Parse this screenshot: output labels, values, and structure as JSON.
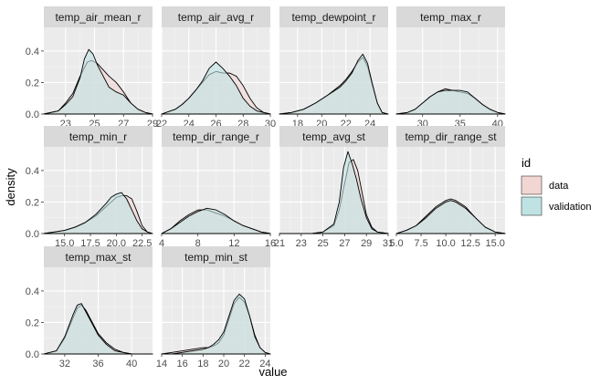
{
  "chart_data": {
    "type": "area",
    "xlabel": "value",
    "ylabel": "density",
    "legend": {
      "title": "id",
      "position": "right",
      "entries": [
        {
          "label": "data",
          "fill": "#f1d6d3"
        },
        {
          "label": "validation",
          "fill": "#bfe3e3"
        }
      ]
    },
    "grid": true,
    "facets": [
      {
        "title": "temp_air_mean_r",
        "xlim": [
          21.5,
          29
        ],
        "ylim": [
          0,
          0.55
        ],
        "xticks": [
          23,
          25,
          27,
          29
        ],
        "yticks": [
          0.0,
          0.2,
          0.4
        ],
        "series": [
          {
            "name": "data",
            "x": [
              21.5,
              22.5,
              23.0,
              23.5,
              24.0,
              24.5,
              24.8,
              25.2,
              25.5,
              26.0,
              26.5,
              27.0,
              27.5,
              28.0,
              28.5,
              29.0
            ],
            "y": [
              0.0,
              0.02,
              0.07,
              0.13,
              0.24,
              0.33,
              0.34,
              0.32,
              0.29,
              0.24,
              0.2,
              0.14,
              0.07,
              0.03,
              0.01,
              0.0
            ]
          },
          {
            "name": "validation",
            "x": [
              21.5,
              22.5,
              23.0,
              23.5,
              24.0,
              24.3,
              24.6,
              24.9,
              25.2,
              25.6,
              26.0,
              26.5,
              27.0,
              27.5,
              28.0,
              28.5,
              29.0
            ],
            "y": [
              0.0,
              0.02,
              0.06,
              0.11,
              0.23,
              0.35,
              0.41,
              0.38,
              0.31,
              0.24,
              0.17,
              0.14,
              0.12,
              0.07,
              0.03,
              0.01,
              0.0
            ]
          }
        ]
      },
      {
        "title": "temp_air_avg_r",
        "xlim": [
          22,
          30
        ],
        "ylim": [
          0,
          0.55
        ],
        "xticks": [
          22,
          24,
          26,
          28,
          30
        ],
        "yticks": [
          0.0,
          0.2,
          0.4
        ],
        "series": [
          {
            "name": "data",
            "x": [
              22.0,
              23.0,
              23.5,
              24.0,
              24.5,
              25.0,
              25.5,
              26.0,
              26.5,
              27.0,
              27.5,
              28.0,
              28.5,
              29.0,
              29.5,
              30.0
            ],
            "y": [
              0.0,
              0.03,
              0.06,
              0.1,
              0.15,
              0.2,
              0.25,
              0.27,
              0.26,
              0.26,
              0.24,
              0.18,
              0.1,
              0.04,
              0.01,
              0.0
            ]
          },
          {
            "name": "validation",
            "x": [
              22.0,
              23.0,
              23.5,
              24.0,
              24.5,
              25.0,
              25.5,
              26.0,
              26.5,
              27.0,
              27.5,
              28.0,
              28.5,
              29.0,
              29.5,
              30.0
            ],
            "y": [
              0.0,
              0.03,
              0.06,
              0.1,
              0.15,
              0.21,
              0.29,
              0.33,
              0.29,
              0.24,
              0.18,
              0.1,
              0.05,
              0.02,
              0.01,
              0.0
            ]
          }
        ]
      },
      {
        "title": "temp_dewpoint_r",
        "xlim": [
          16.5,
          25.5
        ],
        "ylim": [
          0,
          0.55
        ],
        "xticks": [
          18,
          20,
          22,
          24
        ],
        "yticks": [
          0.0,
          0.2,
          0.4
        ],
        "series": [
          {
            "name": "data",
            "x": [
              16.5,
              17.5,
              18.5,
              19.5,
              20.5,
              21.5,
              22.0,
              22.5,
              23.0,
              23.4,
              23.8,
              24.2,
              24.6,
              25.0,
              25.5
            ],
            "y": [
              0.0,
              0.01,
              0.03,
              0.07,
              0.12,
              0.18,
              0.22,
              0.27,
              0.33,
              0.36,
              0.3,
              0.18,
              0.07,
              0.01,
              0.0
            ]
          },
          {
            "name": "validation",
            "x": [
              16.5,
              17.5,
              18.5,
              19.5,
              20.5,
              21.5,
              22.0,
              22.5,
              23.0,
              23.4,
              23.8,
              24.2,
              24.6,
              25.0,
              25.5
            ],
            "y": [
              0.0,
              0.01,
              0.03,
              0.07,
              0.12,
              0.17,
              0.21,
              0.26,
              0.34,
              0.38,
              0.32,
              0.19,
              0.07,
              0.01,
              0.0
            ]
          }
        ]
      },
      {
        "title": "temp_max_r",
        "xlim": [
          26.5,
          41
        ],
        "ylim": [
          0,
          0.55
        ],
        "xticks": [
          30,
          35,
          40
        ],
        "yticks": [
          0.0,
          0.2,
          0.4
        ],
        "series": [
          {
            "name": "data",
            "x": [
              26.5,
              28.0,
              29.0,
              30.0,
              31.0,
              32.0,
              33.0,
              34.0,
              35.0,
              36.0,
              37.0,
              38.0,
              39.0,
              40.0,
              41.0
            ],
            "y": [
              0.0,
              0.01,
              0.03,
              0.07,
              0.11,
              0.14,
              0.16,
              0.15,
              0.14,
              0.13,
              0.1,
              0.06,
              0.03,
              0.01,
              0.0
            ]
          },
          {
            "name": "validation",
            "x": [
              26.5,
              28.0,
              29.0,
              30.0,
              31.0,
              32.0,
              33.0,
              34.0,
              35.0,
              36.0,
              37.0,
              38.0,
              39.0,
              40.0,
              41.0
            ],
            "y": [
              0.0,
              0.01,
              0.03,
              0.07,
              0.11,
              0.14,
              0.15,
              0.15,
              0.15,
              0.14,
              0.1,
              0.06,
              0.03,
              0.01,
              0.0
            ]
          }
        ]
      },
      {
        "title": "temp_min_r",
        "xlim": [
          13,
          23.5
        ],
        "ylim": [
          0,
          0.55
        ],
        "xticks": [
          15.0,
          17.5,
          20.0,
          22.5
        ],
        "yticks": [
          0.0,
          0.2,
          0.4
        ],
        "xticklabels": [
          "15.0",
          "17.5",
          "20.0",
          "22.5"
        ],
        "series": [
          {
            "name": "data",
            "x": [
              13.0,
              14.0,
              15.0,
              16.0,
              17.0,
              18.0,
              19.0,
              19.5,
              20.0,
              20.5,
              21.0,
              21.5,
              22.0,
              22.5,
              23.0,
              23.5
            ],
            "y": [
              0.0,
              0.01,
              0.02,
              0.04,
              0.07,
              0.11,
              0.17,
              0.2,
              0.23,
              0.24,
              0.24,
              0.22,
              0.14,
              0.05,
              0.01,
              0.0
            ]
          },
          {
            "name": "validation",
            "x": [
              13.0,
              14.0,
              15.0,
              16.0,
              17.0,
              18.0,
              19.0,
              19.5,
              20.0,
              20.5,
              21.0,
              21.5,
              22.0,
              22.5,
              23.0,
              23.5
            ],
            "y": [
              0.0,
              0.01,
              0.02,
              0.04,
              0.07,
              0.12,
              0.19,
              0.23,
              0.25,
              0.26,
              0.22,
              0.15,
              0.08,
              0.03,
              0.01,
              0.0
            ]
          }
        ]
      },
      {
        "title": "temp_dir_range_r",
        "xlim": [
          4,
          16
        ],
        "ylim": [
          0,
          0.55
        ],
        "xticks": [
          4,
          8,
          12,
          16
        ],
        "yticks": [
          0.0,
          0.2,
          0.4
        ],
        "series": [
          {
            "name": "data",
            "x": [
              4.0,
              5.0,
              6.0,
              7.0,
              8.0,
              9.0,
              10.0,
              11.0,
              12.0,
              13.0,
              14.0,
              15.0,
              16.0
            ],
            "y": [
              0.0,
              0.03,
              0.08,
              0.12,
              0.15,
              0.15,
              0.13,
              0.11,
              0.08,
              0.05,
              0.03,
              0.01,
              0.0
            ]
          },
          {
            "name": "validation",
            "x": [
              4.0,
              5.0,
              6.0,
              7.0,
              8.0,
              9.0,
              10.0,
              11.0,
              12.0,
              13.0,
              14.0,
              15.0,
              16.0
            ],
            "y": [
              0.0,
              0.03,
              0.07,
              0.11,
              0.14,
              0.16,
              0.15,
              0.12,
              0.08,
              0.05,
              0.03,
              0.01,
              0.0
            ]
          }
        ]
      },
      {
        "title": "temp_avg_st",
        "xlim": [
          21,
          31
        ],
        "ylim": [
          0,
          0.55
        ],
        "xticks": [
          21,
          23,
          25,
          27,
          29,
          31
        ],
        "yticks": [
          0.0,
          0.2,
          0.4
        ],
        "series": [
          {
            "name": "data",
            "x": [
              21.0,
              24.0,
              25.0,
              26.0,
              26.5,
              27.0,
              27.4,
              27.8,
              28.2,
              28.6,
              29.0,
              29.5,
              30.0,
              31.0
            ],
            "y": [
              0.0,
              0.0,
              0.01,
              0.05,
              0.15,
              0.32,
              0.45,
              0.47,
              0.4,
              0.26,
              0.12,
              0.04,
              0.01,
              0.0
            ]
          },
          {
            "name": "validation",
            "x": [
              21.0,
              24.0,
              25.0,
              26.0,
              26.5,
              26.9,
              27.3,
              27.7,
              28.1,
              28.5,
              29.0,
              29.5,
              30.0,
              31.0
            ],
            "y": [
              0.0,
              0.0,
              0.01,
              0.06,
              0.2,
              0.42,
              0.52,
              0.44,
              0.34,
              0.22,
              0.1,
              0.03,
              0.01,
              0.0
            ]
          }
        ]
      },
      {
        "title": "temp_dir_range_st",
        "xlim": [
          5,
          16
        ],
        "ylim": [
          0,
          0.55
        ],
        "xticks": [
          5.0,
          7.5,
          10.0,
          12.5,
          15.0
        ],
        "yticks": [
          0.0,
          0.2,
          0.4
        ],
        "xticklabels": [
          "5.0",
          "7.5",
          "10.0",
          "12.5",
          "15.0"
        ],
        "series": [
          {
            "name": "data",
            "x": [
              5.0,
              6.0,
              7.0,
              8.0,
              9.0,
              10.0,
              10.5,
              11.0,
              12.0,
              13.0,
              14.0,
              15.0,
              16.0
            ],
            "y": [
              0.0,
              0.02,
              0.05,
              0.11,
              0.17,
              0.21,
              0.22,
              0.21,
              0.17,
              0.1,
              0.04,
              0.01,
              0.0
            ]
          },
          {
            "name": "validation",
            "x": [
              5.0,
              6.0,
              7.0,
              8.0,
              9.0,
              10.0,
              10.5,
              11.0,
              12.0,
              13.0,
              14.0,
              15.0,
              16.0
            ],
            "y": [
              0.0,
              0.02,
              0.05,
              0.1,
              0.16,
              0.2,
              0.21,
              0.2,
              0.16,
              0.1,
              0.04,
              0.01,
              0.0
            ]
          }
        ]
      },
      {
        "title": "temp_max_st",
        "xlim": [
          29.5,
          42.5
        ],
        "ylim": [
          0,
          0.55
        ],
        "xticks": [
          32,
          36,
          40
        ],
        "yticks": [
          0.0,
          0.2,
          0.4
        ],
        "series": [
          {
            "name": "data",
            "x": [
              29.5,
              31.0,
              32.0,
              33.0,
              33.5,
              34.0,
              34.5,
              35.0,
              36.0,
              37.0,
              38.0,
              39.0,
              40.0,
              42.5
            ],
            "y": [
              0.0,
              0.02,
              0.1,
              0.23,
              0.29,
              0.31,
              0.28,
              0.23,
              0.13,
              0.07,
              0.03,
              0.01,
              0.0,
              0.0
            ]
          },
          {
            "name": "validation",
            "x": [
              29.5,
              31.0,
              32.0,
              33.0,
              33.5,
              34.0,
              34.5,
              35.0,
              36.0,
              37.0,
              38.0,
              39.0,
              40.0,
              42.5
            ],
            "y": [
              0.0,
              0.02,
              0.11,
              0.25,
              0.31,
              0.32,
              0.27,
              0.22,
              0.12,
              0.06,
              0.02,
              0.01,
              0.0,
              0.0
            ]
          }
        ]
      },
      {
        "title": "temp_min_st",
        "xlim": [
          14,
          24.5
        ],
        "ylim": [
          0,
          0.55
        ],
        "xticks": [
          14,
          16,
          18,
          20,
          22,
          24
        ],
        "yticks": [
          0.0,
          0.2,
          0.4
        ],
        "series": [
          {
            "name": "data",
            "x": [
              14.0,
              15.0,
              16.0,
              17.0,
              18.0,
              18.5,
              19.0,
              19.5,
              20.0,
              20.5,
              21.0,
              21.5,
              22.0,
              22.5,
              23.0,
              23.5,
              24.0,
              24.5
            ],
            "y": [
              0.0,
              0.01,
              0.02,
              0.03,
              0.04,
              0.04,
              0.05,
              0.07,
              0.12,
              0.22,
              0.32,
              0.36,
              0.33,
              0.24,
              0.12,
              0.04,
              0.01,
              0.0
            ]
          },
          {
            "name": "validation",
            "x": [
              14.0,
              15.0,
              16.0,
              17.0,
              18.0,
              18.5,
              19.0,
              19.5,
              20.0,
              20.5,
              21.0,
              21.5,
              22.0,
              22.5,
              23.0,
              23.5,
              24.0,
              24.5
            ],
            "y": [
              0.0,
              0.0,
              0.01,
              0.02,
              0.03,
              0.04,
              0.06,
              0.09,
              0.14,
              0.24,
              0.34,
              0.38,
              0.35,
              0.24,
              0.11,
              0.04,
              0.01,
              0.0
            ]
          }
        ]
      }
    ]
  },
  "colors": {
    "data_fill": "#f1d6d3",
    "validation_fill": "#bfe3e3",
    "panel_bg": "#ebebeb",
    "strip_bg": "#d9d9d9",
    "grid_major": "#ffffff"
  }
}
